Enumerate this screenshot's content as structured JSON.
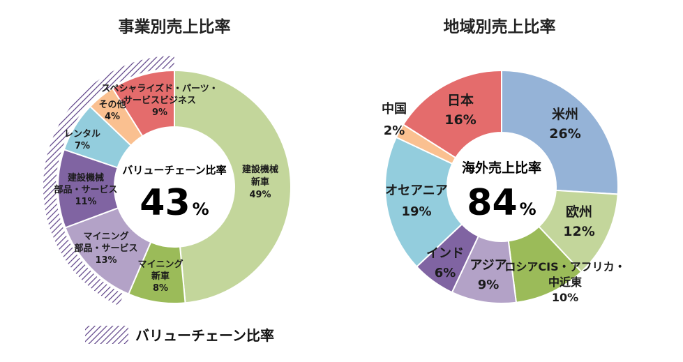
{
  "chart_data": [
    {
      "type": "pie",
      "title": "事業別売上比率",
      "center_label": "バリューチェーン比率",
      "center_value": "43",
      "center_unit": "%",
      "slices": [
        {
          "label": [
            "建設機械",
            "新車"
          ],
          "value": 49,
          "pct_label": "49%",
          "color": "#c3d69b"
        },
        {
          "label": [
            "マイニング",
            "新車"
          ],
          "value": 8,
          "pct_label": "8%",
          "color": "#9bbb59"
        },
        {
          "label": [
            "マイニング",
            "部品・サービス"
          ],
          "value": 13,
          "pct_label": "13%",
          "color": "#b3a2c7"
        },
        {
          "label": [
            "建設機械",
            "部品・サービス"
          ],
          "value": 11,
          "pct_label": "11%",
          "color": "#8064a2"
        },
        {
          "label": [
            "レンタル"
          ],
          "value": 7,
          "pct_label": "7%",
          "color": "#93cddd"
        },
        {
          "label": [
            "その他"
          ],
          "value": 4,
          "pct_label": "4%",
          "color": "#fac090"
        },
        {
          "label": [
            "スペシャライズド・パーツ・",
            "サービスビジネス"
          ],
          "value": 9,
          "pct_label": "9%",
          "color": "#e46c6c"
        }
      ],
      "legend": {
        "label": "バリューチェーン比率"
      }
    },
    {
      "type": "pie",
      "title": "地域別売上比率",
      "center_label": "海外売上比率",
      "center_value": "84",
      "center_unit": "%",
      "slices": [
        {
          "label": [
            "米州"
          ],
          "value": 26,
          "pct_label": "26%",
          "color": "#95b3d7"
        },
        {
          "label": [
            "欧州"
          ],
          "value": 12,
          "pct_label": "12%",
          "color": "#c3d69b"
        },
        {
          "label": [
            "ロシアCIS・アフリカ・",
            "中近東"
          ],
          "value": 10,
          "pct_label": "10%",
          "color": "#9bbb59"
        },
        {
          "label": [
            "アジア"
          ],
          "value": 9,
          "pct_label": "9%",
          "color": "#b3a2c7"
        },
        {
          "label": [
            "インド"
          ],
          "value": 6,
          "pct_label": "6%",
          "color": "#8064a2"
        },
        {
          "label": [
            "オセアニア"
          ],
          "value": 19,
          "pct_label": "19%",
          "color": "#93cddd"
        },
        {
          "label": [
            "中国"
          ],
          "value": 2,
          "pct_label": "2%",
          "color": "#fac090"
        },
        {
          "label": [
            "日本"
          ],
          "value": 16,
          "pct_label": "16%",
          "color": "#e46c6c"
        }
      ]
    }
  ]
}
